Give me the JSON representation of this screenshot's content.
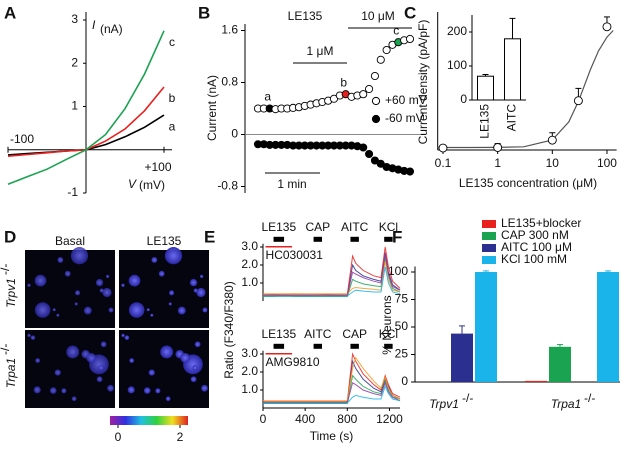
{
  "chart_data": [
    {
      "type": "line",
      "label": "A",
      "ylabel": "I",
      "ylabel_unit": "(nA)",
      "xlabel": "V",
      "xlabel_unit": "(mV)",
      "x": [
        -100,
        -75,
        -50,
        -25,
        0,
        25,
        50,
        75,
        100
      ],
      "series": [
        {
          "name": "a",
          "color": "#000000",
          "values": [
            -0.12,
            -0.09,
            -0.06,
            -0.03,
            0,
            0.12,
            0.3,
            0.52,
            0.8
          ]
        },
        {
          "name": "b",
          "color": "#e8211f",
          "values": [
            -0.15,
            -0.11,
            -0.07,
            -0.03,
            0,
            0.2,
            0.48,
            0.9,
            1.45
          ]
        },
        {
          "name": "c",
          "color": "#1aa351",
          "values": [
            -0.8,
            -0.62,
            -0.45,
            -0.22,
            0,
            0.35,
            0.95,
            1.75,
            2.75
          ]
        }
      ],
      "xlim": [
        -100,
        100
      ],
      "ylim": [
        -1,
        3
      ],
      "xticks": [
        -100,
        {
          "value": 100,
          "label": "+100"
        }
      ],
      "yticks": [
        -1,
        1,
        2,
        3
      ]
    },
    {
      "type": "scatter",
      "label": "B",
      "title": "LE135",
      "ylabel": "Current (nA)",
      "ylim": [
        -0.9,
        1.7
      ],
      "yticks": [
        -0.8,
        0,
        0.8,
        1.6
      ],
      "zero_line": true,
      "series": [
        {
          "name": "+60 mV",
          "marker": "open",
          "color": "#000000",
          "values": [
            0.4,
            0.4,
            0.4,
            0.39,
            0.4,
            0.4,
            0.41,
            0.42,
            0.44,
            0.46,
            0.48,
            0.5,
            0.52,
            0.55,
            0.6,
            0.62,
            0.58,
            0.6,
            0.62,
            0.7,
            0.9,
            1.15,
            1.3,
            1.38,
            1.42,
            1.45,
            1.47
          ]
        },
        {
          "name": "-60 mV",
          "marker": "filled",
          "color": "#000000",
          "values": [
            -0.15,
            -0.15,
            -0.16,
            -0.16,
            -0.16,
            -0.16,
            -0.17,
            -0.17,
            -0.17,
            -0.17,
            -0.17,
            -0.17,
            -0.17,
            -0.17,
            -0.17,
            -0.17,
            -0.17,
            -0.18,
            -0.2,
            -0.3,
            -0.4,
            -0.45,
            -0.5,
            -0.52,
            -0.54,
            -0.56,
            -0.57
          ]
        }
      ],
      "highlights": [
        {
          "label": "a",
          "index": 2,
          "color": "#000000"
        },
        {
          "label": "b",
          "index": 15,
          "color": "#e8211f"
        },
        {
          "label": "c",
          "index": 24,
          "color": "#1aa351"
        }
      ],
      "annotations": [
        "1 μM",
        "10 μM",
        "1 min"
      ]
    },
    {
      "type": "scatter",
      "label": "C",
      "xlabel": "LE135 concentration (μM)",
      "ylabel": "Current density (pA/pF)",
      "xscale": "log",
      "xlim": [
        0.08,
        150
      ],
      "ylim": [
        0,
        280
      ],
      "xticks": [
        0.1,
        1,
        10,
        100
      ],
      "x": [
        0.1,
        1,
        10,
        30,
        100
      ],
      "series": [
        {
          "marker": "open",
          "color": "#000000",
          "values": [
            4,
            5,
            20,
            100,
            250
          ],
          "errors": [
            6,
            8,
            15,
            25,
            20
          ]
        }
      ],
      "fit": {
        "color": "#555555",
        "x": [
          0.08,
          0.3,
          1,
          3,
          10,
          20,
          30,
          50,
          70,
          100,
          130
        ],
        "values": [
          5,
          5,
          5.2,
          6.5,
          20.3,
          57,
          98.6,
          163.5,
          201,
          229,
          242.5
        ]
      },
      "inset": {
        "categories": [
          "LE135",
          "AITC"
        ],
        "values": [
          70,
          180
        ],
        "errors": [
          5,
          60
        ],
        "ylim": [
          0,
          250
        ],
        "yticks": [
          0,
          100,
          200
        ]
      }
    },
    {
      "type": "image",
      "label": "D",
      "columns": [
        "Basal",
        "LE135"
      ],
      "rows": [
        {
          "name": "Trpv1",
          "suffix": "-/-"
        },
        {
          "name": "Trpa1",
          "suffix": "-/-"
        }
      ],
      "colorbar": {
        "ticks": [
          0,
          2
        ]
      }
    },
    {
      "type": "line",
      "label": "E",
      "xlabel": "Time (s)",
      "ylabel": "Ratio (F340/F380)",
      "x": [
        0,
        100,
        200,
        300,
        400,
        500,
        600,
        700,
        800,
        850,
        880,
        950,
        1050,
        1120,
        1160,
        1190,
        1230,
        1300
      ],
      "xlim": [
        0,
        1300
      ],
      "ylim": [
        0,
        3.4
      ],
      "xticks": [
        0,
        400,
        800,
        1200
      ],
      "panels": [
        {
          "stimuli": [
            {
              "name": "LE135",
              "start": 100,
              "end": 200
            },
            {
              "name": "CAP",
              "start": 480,
              "end": 560
            },
            {
              "name": "AITC",
              "start": 830,
              "end": 910
            },
            {
              "name": "KCl",
              "start": 1150,
              "end": 1230
            }
          ],
          "blocker": {
            "name": "HC030031",
            "color": "#e8211f"
          },
          "yticks": [
            {
              "value": 1,
              "label": "1.0"
            },
            {
              "value": 2,
              "label": "2.0"
            },
            {
              "value": 3,
              "label": "3.0"
            }
          ],
          "series": [
            {
              "color": "#2b2f8f",
              "values": [
                0.3,
                0.3,
                0.32,
                0.3,
                0.3,
                0.3,
                0.3,
                0.31,
                0.3,
                2.0,
                1.7,
                1.4,
                1.2,
                1.1,
                2.7,
                1.6,
                0.9,
                0.6
              ]
            },
            {
              "color": "#e8211f",
              "values": [
                0.35,
                0.36,
                0.35,
                0.35,
                0.35,
                0.35,
                0.36,
                0.35,
                0.35,
                2.5,
                2.1,
                1.7,
                1.4,
                1.3,
                3.0,
                1.9,
                1.1,
                0.7
              ]
            },
            {
              "color": "#1aa351",
              "values": [
                0.25,
                0.25,
                0.26,
                0.25,
                0.25,
                0.25,
                0.25,
                0.25,
                0.25,
                1.2,
                1.1,
                0.95,
                0.85,
                0.8,
                2.4,
                1.4,
                0.7,
                0.5
              ]
            },
            {
              "color": "#f39a1e",
              "values": [
                0.4,
                0.4,
                0.4,
                0.41,
                0.4,
                0.4,
                0.4,
                0.4,
                0.4,
                0.7,
                0.75,
                0.7,
                0.65,
                0.6,
                2.2,
                1.2,
                0.6,
                0.5
              ]
            },
            {
              "color": "#8e3aa8",
              "values": [
                0.3,
                0.3,
                0.3,
                0.3,
                0.31,
                0.3,
                0.3,
                0.3,
                0.3,
                1.6,
                1.5,
                1.3,
                1.1,
                1.0,
                2.6,
                1.5,
                0.8,
                0.6
              ]
            },
            {
              "color": "#1ab3ea",
              "values": [
                0.28,
                0.28,
                0.28,
                0.28,
                0.28,
                0.28,
                0.28,
                0.28,
                0.28,
                0.5,
                0.6,
                0.55,
                0.5,
                0.5,
                1.9,
                1.0,
                0.5,
                0.4
              ]
            }
          ]
        },
        {
          "stimuli": [
            {
              "name": "LE135",
              "start": 100,
              "end": 200
            },
            {
              "name": "AITC",
              "start": 480,
              "end": 560
            },
            {
              "name": "CAP",
              "start": 830,
              "end": 910
            },
            {
              "name": "KCl",
              "start": 1150,
              "end": 1230
            }
          ],
          "blocker": {
            "name": "AMG9810",
            "color": "#e8211f"
          },
          "yticks": [
            {
              "value": 1,
              "label": "1.0"
            },
            {
              "value": 2,
              "label": "2.0"
            },
            {
              "value": 3,
              "label": "3.0"
            }
          ],
          "series": [
            {
              "color": "#2b2f8f",
              "values": [
                0.3,
                0.3,
                0.3,
                0.3,
                0.3,
                0.3,
                0.3,
                0.3,
                0.3,
                2.6,
                2.2,
                1.6,
                1.1,
                0.9,
                1.6,
                1.2,
                0.7,
                0.5
              ]
            },
            {
              "color": "#e8211f",
              "values": [
                0.35,
                0.35,
                0.35,
                0.35,
                0.35,
                0.35,
                0.35,
                0.35,
                0.35,
                3.0,
                2.6,
                1.9,
                1.3,
                1.0,
                1.8,
                1.3,
                0.8,
                0.6
              ]
            },
            {
              "color": "#1aa351",
              "values": [
                0.25,
                0.25,
                0.25,
                0.25,
                0.25,
                0.25,
                0.25,
                0.25,
                0.25,
                1.8,
                1.6,
                1.2,
                0.9,
                0.8,
                1.5,
                1.0,
                0.6,
                0.5
              ]
            },
            {
              "color": "#f39a1e",
              "values": [
                0.4,
                0.4,
                0.4,
                0.4,
                0.4,
                0.4,
                0.4,
                0.4,
                0.4,
                2.2,
                2.8,
                2.2,
                1.5,
                1.1,
                1.7,
                1.1,
                0.7,
                0.5
              ]
            },
            {
              "color": "#8e3aa8",
              "values": [
                0.3,
                0.3,
                0.3,
                0.3,
                0.3,
                0.3,
                0.3,
                0.3,
                0.3,
                1.4,
                1.3,
                1.0,
                0.8,
                0.7,
                1.4,
                0.9,
                0.6,
                0.4
              ]
            },
            {
              "color": "#1ab3ea",
              "values": [
                0.28,
                0.28,
                0.28,
                0.28,
                0.28,
                0.28,
                0.28,
                0.28,
                0.28,
                0.6,
                0.7,
                0.6,
                0.5,
                0.5,
                1.2,
                0.8,
                0.5,
                0.4
              ]
            }
          ]
        }
      ]
    },
    {
      "type": "bar",
      "label": "F",
      "ylabel": "% Neurons",
      "categories": [
        "Trpv1",
        "Trpa1"
      ],
      "category_suffixes": [
        "-/-",
        "-/-"
      ],
      "series": [
        {
          "name": "LE135+blocker",
          "color": "#e8211f",
          "values": [
            0,
            1
          ],
          "errors": [
            0,
            0
          ]
        },
        {
          "name": "CAP 300 nM",
          "color": "#1aa351",
          "values": [
            0,
            32
          ],
          "errors": [
            0,
            2
          ]
        },
        {
          "name": "AITC 100 μM",
          "color": "#2b2f8f",
          "values": [
            44,
            0
          ],
          "errors": [
            7,
            0
          ]
        },
        {
          "name": "KCl 100 mM",
          "color": "#1ab3ea",
          "values": [
            100,
            100
          ],
          "errors": [
            1,
            1
          ]
        }
      ],
      "ylim": [
        0,
        105
      ],
      "yticks": [
        0,
        25,
        50,
        75,
        100
      ]
    }
  ]
}
